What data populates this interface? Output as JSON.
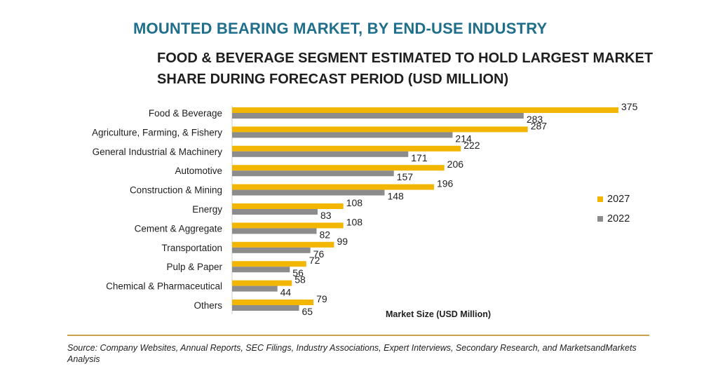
{
  "title": "MOUNTED BEARING MARKET, BY END-USE INDUSTRY",
  "subtitle": "FOOD & BEVERAGE SEGMENT ESTIMATED TO HOLD LARGEST MARKET SHARE DURING FORECAST PERIOD (USD MILLION)",
  "source": "Source: Company Websites, Annual Reports, SEC Filings, Industry Associations, Expert Interviews, Secondary Research, and MarketsandMarkets Analysis",
  "chart_data": {
    "type": "bar",
    "orientation": "horizontal",
    "categories": [
      "Food & Beverage",
      "Agriculture, Farming, & Fishery",
      "General Industrial & Machinery",
      "Automotive",
      "Construction & Mining",
      "Energy",
      "Cement & Aggregate",
      "Transportation",
      "Pulp & Paper",
      "Chemical & Pharmaceutical",
      "Others"
    ],
    "series": [
      {
        "name": "2027",
        "color": "#f2b600",
        "values": [
          375,
          287,
          222,
          206,
          196,
          108,
          108,
          99,
          72,
          58,
          79
        ]
      },
      {
        "name": "2022",
        "color": "#8c8c8c",
        "values": [
          283,
          214,
          171,
          157,
          148,
          83,
          82,
          76,
          56,
          44,
          65
        ]
      }
    ],
    "xlabel": "Market Size (USD Million)",
    "ylabel": "",
    "xlim": [
      0,
      375
    ],
    "grid": false,
    "legend_position": "right",
    "data_labels": true
  }
}
